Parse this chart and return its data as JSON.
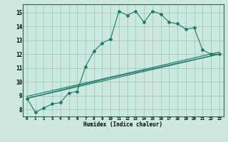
{
  "xlabel": "Humidex (Indice chaleur)",
  "bg_color": "#cce8df",
  "grid_color": "#99ccbb",
  "line_color": "#1a7a6a",
  "xlim": [
    -0.5,
    23.5
  ],
  "ylim": [
    7.5,
    15.6
  ],
  "xticks": [
    0,
    1,
    2,
    3,
    4,
    5,
    6,
    7,
    8,
    9,
    10,
    11,
    12,
    13,
    14,
    15,
    16,
    17,
    18,
    19,
    20,
    21,
    22,
    23
  ],
  "yticks": [
    8,
    9,
    10,
    11,
    12,
    13,
    14,
    15
  ],
  "series1_x": [
    0,
    1,
    2,
    3,
    4,
    5,
    6,
    7,
    8,
    9,
    10,
    11,
    12,
    13,
    14,
    15,
    16,
    17,
    18,
    19,
    20,
    21,
    22,
    23
  ],
  "series1_y": [
    8.8,
    7.8,
    8.1,
    8.4,
    8.5,
    9.2,
    9.3,
    11.1,
    12.2,
    12.8,
    13.1,
    15.1,
    14.8,
    15.1,
    14.3,
    15.1,
    14.9,
    14.3,
    14.2,
    13.8,
    13.9,
    12.3,
    12.0,
    12.0
  ],
  "series2_x": [
    0,
    23
  ],
  "series2_y": [
    8.8,
    12.0
  ],
  "series3_x": [
    0,
    23
  ],
  "series3_y": [
    8.8,
    12.0
  ],
  "series4_x": [
    0,
    10,
    23
  ],
  "series4_y": [
    8.8,
    10.3,
    12.0
  ]
}
